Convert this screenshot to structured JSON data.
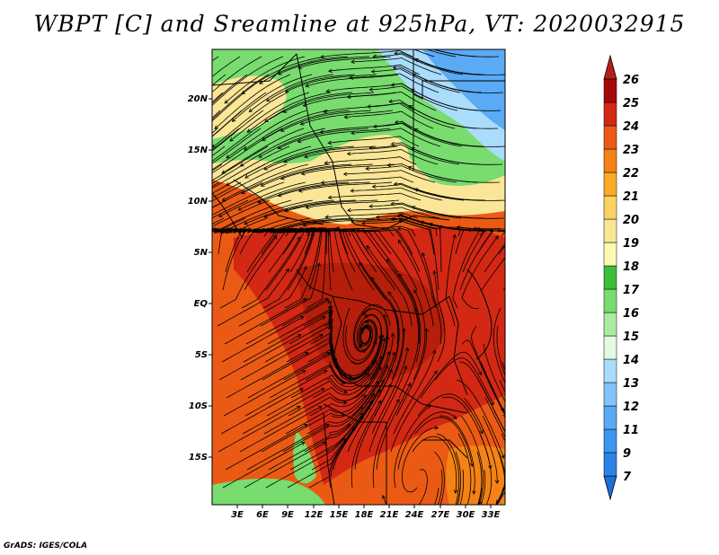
{
  "title": "WBPT [C] and Sreamline at 925hPa, VT: 2020032915",
  "footer": "GrADS: IGES/COLA",
  "lat_labels": [
    "20N",
    "15N",
    "10N",
    "5N",
    "EQ",
    "5S",
    "10S",
    "15S"
  ],
  "lon_labels": [
    "3E",
    "6E",
    "9E",
    "12E",
    "15E",
    "18E",
    "21E",
    "24E",
    "27E",
    "30E",
    "33E"
  ],
  "colorbar": {
    "labels": [
      "7",
      "9",
      "11",
      "12",
      "13",
      "14",
      "15",
      "16",
      "17",
      "18",
      "19",
      "20",
      "21",
      "22",
      "23",
      "24",
      "25",
      "26"
    ],
    "colors": [
      "#1e6ed8",
      "#2d82e6",
      "#3c96f0",
      "#5aaaf5",
      "#82c4fa",
      "#aadcfc",
      "#e1fae1",
      "#aaeba0",
      "#78dc6e",
      "#3cbe3c",
      "#fafab4",
      "#fae696",
      "#fad264",
      "#faaa28",
      "#f58214",
      "#eb5a14",
      "#d22814",
      "#a50a0a",
      "#b91e14"
    ]
  },
  "colors": {
    "water_cool": "#6eb4f0",
    "green": "#78dc6e",
    "cream": "#fae696",
    "orange": "#eb5a14",
    "red": "#d22814",
    "dark_red": "#b41e0a"
  }
}
